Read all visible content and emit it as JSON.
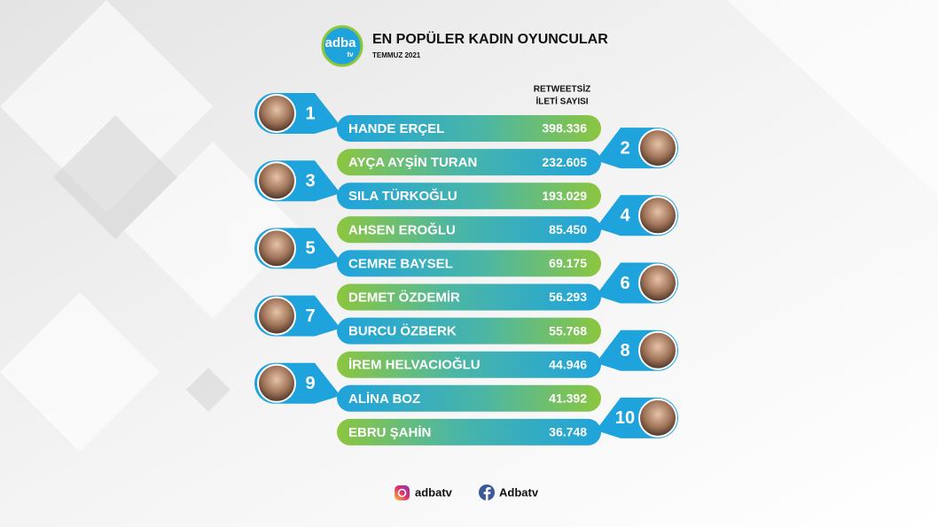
{
  "header": {
    "logo": "adba",
    "logo_sub": "tv",
    "title": "EN POPÜLER KADIN OYUNCULAR",
    "subtitle": "TEMMUZ 2021"
  },
  "column_header": [
    "RETWEETSİZ",
    "İLETİ SAYISI"
  ],
  "rows": [
    {
      "rank": 1,
      "name": "HANDE ERÇEL",
      "value": "398.336"
    },
    {
      "rank": 2,
      "name": "AYÇA AYŞİN TURAN",
      "value": "232.605"
    },
    {
      "rank": 3,
      "name": "SILA TÜRKOĞLU",
      "value": "193.029"
    },
    {
      "rank": 4,
      "name": "AHSEN EROĞLU",
      "value": "85.450"
    },
    {
      "rank": 5,
      "name": "CEMRE BAYSEL",
      "value": "69.175"
    },
    {
      "rank": 6,
      "name": "DEMET ÖZDEMİR",
      "value": "56.293"
    },
    {
      "rank": 7,
      "name": "BURCU ÖZBERK",
      "value": "55.768"
    },
    {
      "rank": 8,
      "name": "İREM HELVACIOĞLU",
      "value": "44.946"
    },
    {
      "rank": 9,
      "name": "ALİNA BOZ",
      "value": "41.392"
    },
    {
      "rank": 10,
      "name": "EBRU ŞAHİN",
      "value": "36.748"
    }
  ],
  "footer": {
    "instagram": "adbatv",
    "facebook": "Adbatv"
  }
}
